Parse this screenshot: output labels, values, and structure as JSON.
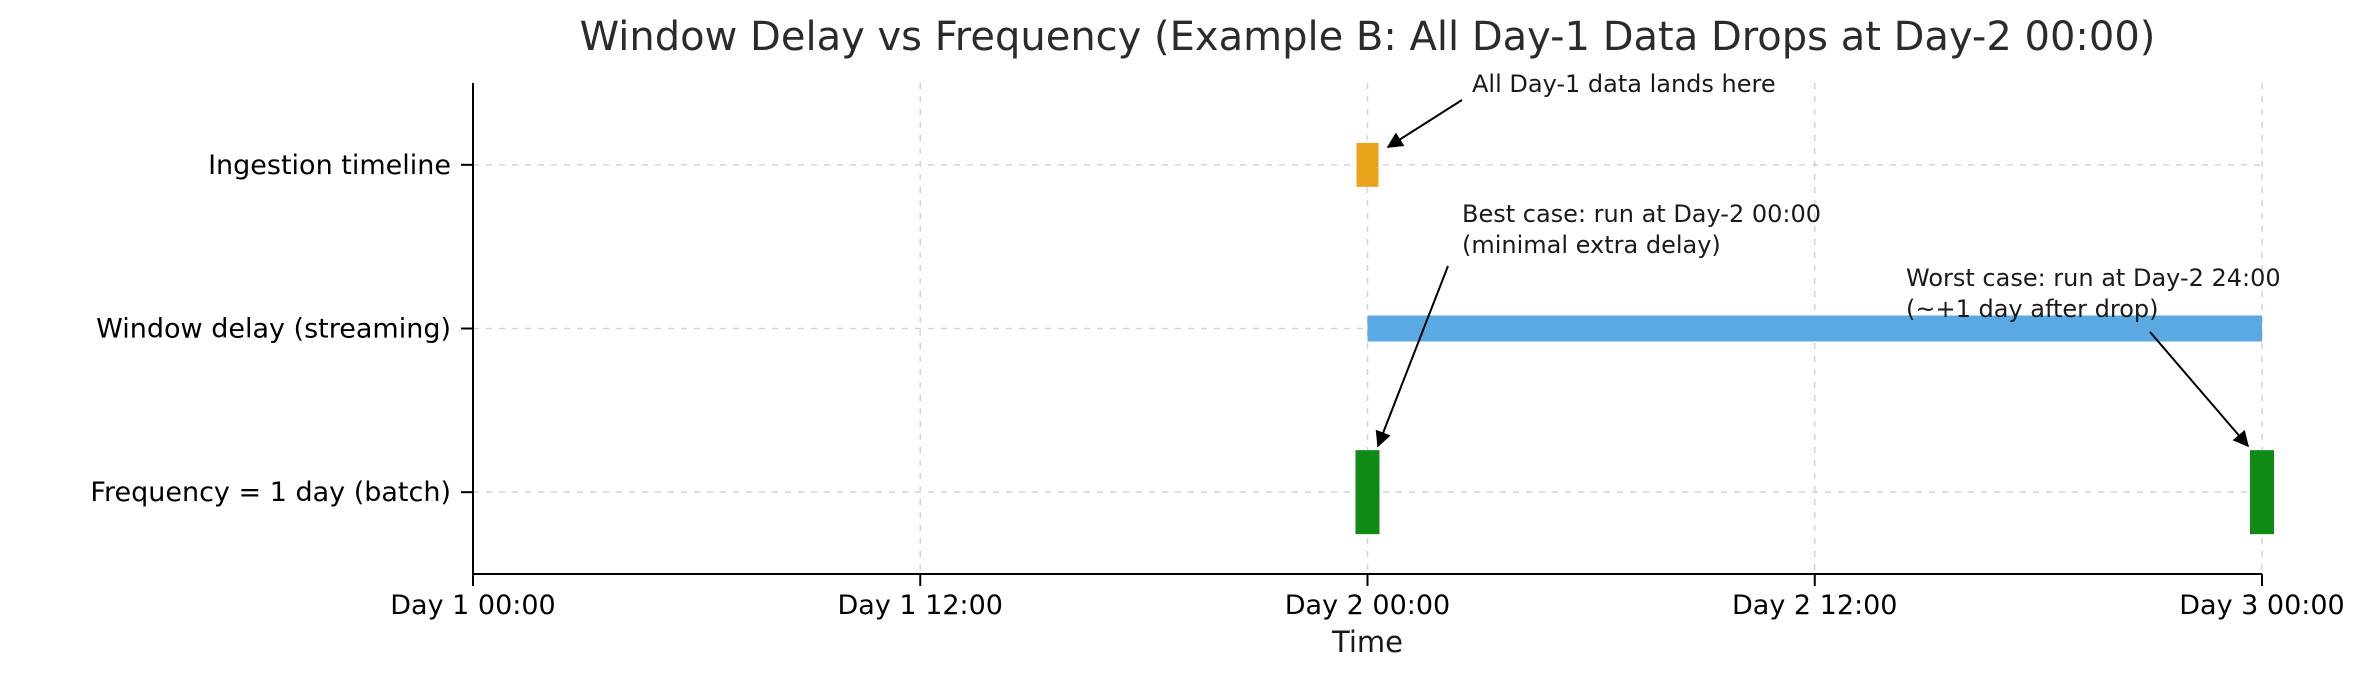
{
  "chart_data": {
    "type": "timeline",
    "title": "Window Delay vs Frequency (Example B: All Day-1 Data Drops at Day-2 00:00)",
    "xlabel": "Time",
    "xlim_hours": [
      0,
      48
    ],
    "ylim": [
      -0.5,
      2.5
    ],
    "grid": true,
    "x_ticks": [
      {
        "hours": 0,
        "label": "Day 1 00:00"
      },
      {
        "hours": 12,
        "label": "Day 1 12:00"
      },
      {
        "hours": 24,
        "label": "Day 2 00:00"
      },
      {
        "hours": 36,
        "label": "Day 2 12:00"
      },
      {
        "hours": 48,
        "label": "Day 3 00:00"
      }
    ],
    "rows": [
      {
        "y": 2,
        "label": "Ingestion timeline"
      },
      {
        "y": 1,
        "label": "Window delay (streaming)"
      },
      {
        "y": 0,
        "label": "Frequency = 1 day (batch)"
      }
    ],
    "marks": [
      {
        "id": "ingestion-drop-marker",
        "kind": "point",
        "row": 2,
        "x_hours": 24,
        "color": "#e9a41c"
      },
      {
        "id": "window-delay-span",
        "kind": "span",
        "row": 1,
        "x_start_hours": 24,
        "x_end_hours": 48,
        "color": "#5aa9e2"
      },
      {
        "id": "batch-run-best-marker",
        "kind": "point",
        "row": 0,
        "x_hours": 24,
        "color": "#0f8a12"
      },
      {
        "id": "batch-run-worst-marker",
        "kind": "point",
        "row": 0,
        "x_hours": 48,
        "color": "#0f8a12"
      }
    ],
    "annotations": [
      {
        "id": "drop-annotation",
        "lines": [
          "All Day-1 data lands here"
        ]
      },
      {
        "id": "best-case-annotation",
        "lines": [
          "Best case: run at Day-2 00:00",
          "(minimal extra delay)"
        ]
      },
      {
        "id": "worst-case-annotation",
        "lines": [
          "Worst case: run at Day-2 24:00",
          "(~+1 day after drop)"
        ]
      }
    ],
    "colors": {
      "ingestion": "#e9a41c",
      "window_delay": "#5aa9e2",
      "batch": "#0f8a12",
      "grid": "#d4d4d4",
      "axis": "#000000",
      "title": "#2b2b2b",
      "annotation": "#1a1a1a"
    }
  }
}
